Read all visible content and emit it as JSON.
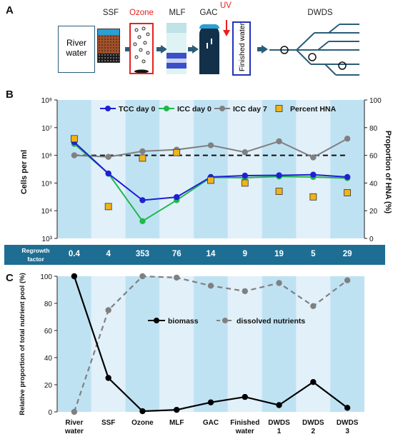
{
  "panel_a": {
    "letter": "A",
    "stages": [
      "SSF",
      "Ozone",
      "MLF",
      "GAC",
      "UV",
      "DWDS"
    ],
    "river_box_line1": "River",
    "river_box_line2": "water",
    "finished_box": "Finished water",
    "colors": {
      "ozone": "#e8201e",
      "uv": "#e8201e",
      "arrow": "#2a5d78",
      "finished_border": "#2233bb"
    }
  },
  "panel_b": {
    "letter": "B",
    "regrowth_label_line1": "Regrowth",
    "regrowth_label_line2": "factor",
    "regrowth_values": [
      "0.4",
      "4",
      "353",
      "76",
      "14",
      "9",
      "19",
      "5",
      "29"
    ]
  },
  "panel_c": {
    "letter": "C",
    "categories": [
      [
        "River",
        "water"
      ],
      [
        "SSF"
      ],
      [
        "Ozone"
      ],
      [
        "MLF"
      ],
      [
        "GAC"
      ],
      [
        "Finished",
        "water"
      ],
      [
        "DWDS",
        "1"
      ],
      [
        "DWDS",
        "2"
      ],
      [
        "DWDS",
        "3"
      ]
    ]
  },
  "chart_data": [
    {
      "type": "line",
      "panel": "B",
      "x_count": 9,
      "ylabel": "Cells per ml",
      "y2label": "Proportion of HNA (%)",
      "y_scale": "log",
      "ylim": [
        1000,
        100000000
      ],
      "y_ticks": [
        "10³",
        "10⁴",
        "10⁵",
        "10⁶",
        "10⁷",
        "10⁸"
      ],
      "y2lim": [
        0,
        100
      ],
      "y2_ticks": [
        "0",
        "20",
        "40",
        "60",
        "80",
        "100"
      ],
      "legend": "top",
      "reference_line": 1000000,
      "series": [
        {
          "name": "TCC day 0",
          "axis": "left",
          "color": "#1f1fd6",
          "marker": "circle",
          "values": [
            3000000,
            220000,
            24000,
            31000,
            165000,
            185000,
            190000,
            200000,
            165000
          ]
        },
        {
          "name": "ICC day 0",
          "axis": "left",
          "color": "#1fb84a",
          "marker": "circle",
          "values": [
            2600000,
            220000,
            4200,
            24000,
            160000,
            155000,
            172000,
            165000,
            150000
          ]
        },
        {
          "name": "ICC day 7",
          "axis": "left",
          "color": "#808080",
          "marker": "circle",
          "values": [
            1000000,
            880000,
            1400000,
            1600000,
            2300000,
            1300000,
            3200000,
            840000,
            4000000
          ]
        },
        {
          "name": "Percent HNA",
          "axis": "right",
          "color": "#f0b419",
          "marker": "square",
          "values": [
            72,
            23,
            58,
            62,
            42,
            40,
            34,
            30,
            33
          ]
        }
      ]
    },
    {
      "type": "line",
      "panel": "C",
      "x_count": 9,
      "ylabel": "Relative proportion of total nutrient pool (%)",
      "ylim": [
        0,
        100
      ],
      "y_ticks": [
        "0",
        "20",
        "40",
        "60",
        "80",
        "100"
      ],
      "legend": "middle",
      "series": [
        {
          "name": "biomass",
          "color": "#000000",
          "style": "solid",
          "values": [
            100,
            25,
            0.5,
            1.5,
            7,
            11,
            5,
            22,
            3
          ]
        },
        {
          "name": "dissolved nutrients",
          "color": "#808080",
          "style": "dashed",
          "values": [
            0,
            75,
            100,
            99,
            93,
            89,
            95,
            78,
            97
          ]
        }
      ]
    }
  ]
}
